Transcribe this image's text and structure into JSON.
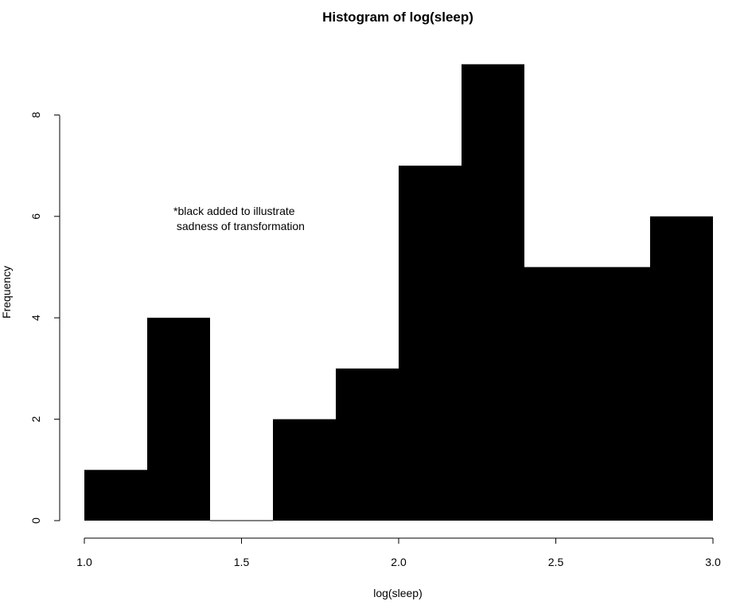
{
  "chart_data": {
    "type": "bar",
    "title": "Histogram of log(sleep)",
    "xlabel": "log(sleep)",
    "ylabel": "Frequency",
    "bins": [
      {
        "x0": 1.0,
        "x1": 1.2,
        "count": 1
      },
      {
        "x0": 1.2,
        "x1": 1.4,
        "count": 4
      },
      {
        "x0": 1.4,
        "x1": 1.6,
        "count": 0
      },
      {
        "x0": 1.6,
        "x1": 1.8,
        "count": 2
      },
      {
        "x0": 1.8,
        "x1": 2.0,
        "count": 3
      },
      {
        "x0": 2.0,
        "x1": 2.2,
        "count": 7
      },
      {
        "x0": 2.2,
        "x1": 2.4,
        "count": 9
      },
      {
        "x0": 2.4,
        "x1": 2.6,
        "count": 5
      },
      {
        "x0": 2.6,
        "x1": 2.8,
        "count": 5
      },
      {
        "x0": 2.8,
        "x1": 3.0,
        "count": 6
      }
    ],
    "xlim": [
      1.0,
      3.0
    ],
    "ylim": [
      0,
      9
    ],
    "xticks": [
      "1.0",
      "1.5",
      "2.0",
      "2.5",
      "3.0"
    ],
    "yticks": [
      "0",
      "2",
      "4",
      "6",
      "8"
    ],
    "grid": false,
    "bar_color": "#000000",
    "annotation": {
      "line1": "*black added to illustrate",
      "line2": " sadness of transformation",
      "x": 1.28,
      "y": 6.1
    }
  }
}
